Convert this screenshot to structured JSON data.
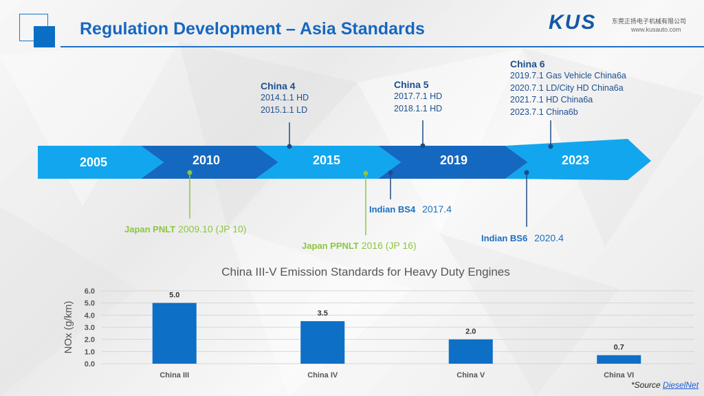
{
  "header": {
    "title": "Regulation Development – Asia Standards",
    "brand": "KUS",
    "company": "东莞正扬电子机械有限公司",
    "website": "www.kusauto.com"
  },
  "timeline": {
    "years": [
      "2005",
      "2010",
      "2015",
      "2019",
      "2023"
    ],
    "china4": {
      "title": "China 4",
      "lines": [
        "2014.1.1 HD",
        "2015.1.1 LD"
      ]
    },
    "china5": {
      "title": "China 5",
      "lines": [
        "2017.7.1 HD",
        "2018.1.1 HD"
      ]
    },
    "china6": {
      "title": "China 6",
      "lines": [
        "2019.7.1 Gas Vehicle China6a",
        "2020.7.1 LD/City HD China6a",
        "2021.7.1 HD China6a",
        "2023.7.1 China6b"
      ]
    },
    "japan_pnlt": {
      "label": "Japan PNLT",
      "value": "2009.10 (JP 10)"
    },
    "japan_ppnlt": {
      "label": "Japan PPNLT",
      "value": "2016 (JP 16)"
    },
    "indian_bs4": {
      "label": "Indian BS4",
      "value": "2017.4"
    },
    "indian_bs6": {
      "label": "Indian BS6",
      "value": "2020.4"
    },
    "colors": {
      "light": "#12a6ef",
      "dark": "#1568c0",
      "green": "#8cc63f",
      "marker": "#1d4d86"
    }
  },
  "chart_data": {
    "type": "bar",
    "title": "China III-V Emission Standards for Heavy Duty Engines",
    "categories": [
      "China III",
      "China IV",
      "China V",
      "China VI"
    ],
    "values": [
      5.0,
      3.5,
      2.0,
      0.7
    ],
    "value_labels": [
      "5.0",
      "3.5",
      "2.0",
      "0.7"
    ],
    "ylabel": "NOx (g/km)",
    "xlabel": "",
    "ylim": [
      0,
      6
    ],
    "yticks": [
      "0.0",
      "1.0",
      "2.0",
      "3.0",
      "4.0",
      "5.0",
      "6.0"
    ],
    "grid": true,
    "bar_color": "#0d6fc6"
  },
  "source": {
    "prefix": "*Source ",
    "link": "DieselNet"
  }
}
